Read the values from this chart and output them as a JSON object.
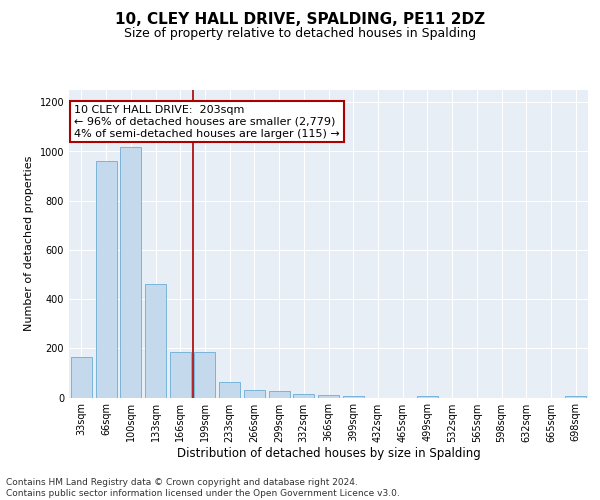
{
  "title": "10, CLEY HALL DRIVE, SPALDING, PE11 2DZ",
  "subtitle": "Size of property relative to detached houses in Spalding",
  "xlabel": "Distribution of detached houses by size in Spalding",
  "ylabel": "Number of detached properties",
  "categories": [
    "33sqm",
    "66sqm",
    "100sqm",
    "133sqm",
    "166sqm",
    "199sqm",
    "233sqm",
    "266sqm",
    "299sqm",
    "332sqm",
    "366sqm",
    "399sqm",
    "432sqm",
    "465sqm",
    "499sqm",
    "532sqm",
    "565sqm",
    "598sqm",
    "632sqm",
    "665sqm",
    "698sqm"
  ],
  "values": [
    165,
    960,
    1020,
    460,
    185,
    185,
    65,
    30,
    25,
    15,
    10,
    5,
    0,
    0,
    5,
    0,
    0,
    0,
    0,
    0,
    5
  ],
  "bar_color": "#c5d9ed",
  "bar_edge_color": "#6aaed6",
  "vline_x": 4.5,
  "vline_color": "#aa0000",
  "annotation_line1": "10 CLEY HALL DRIVE:  203sqm",
  "annotation_line2": "← 96% of detached houses are smaller (2,779)",
  "annotation_line3": "4% of semi-detached houses are larger (115) →",
  "annotation_box_color": "white",
  "annotation_box_edgecolor": "#aa0000",
  "ylim": [
    0,
    1250
  ],
  "yticks": [
    0,
    200,
    400,
    600,
    800,
    1000,
    1200
  ],
  "background_color": "#e8eef5",
  "footer_text": "Contains HM Land Registry data © Crown copyright and database right 2024.\nContains public sector information licensed under the Open Government Licence v3.0.",
  "title_fontsize": 11,
  "subtitle_fontsize": 9,
  "xlabel_fontsize": 8.5,
  "ylabel_fontsize": 8,
  "tick_fontsize": 7,
  "footer_fontsize": 6.5,
  "annotation_fontsize": 8
}
